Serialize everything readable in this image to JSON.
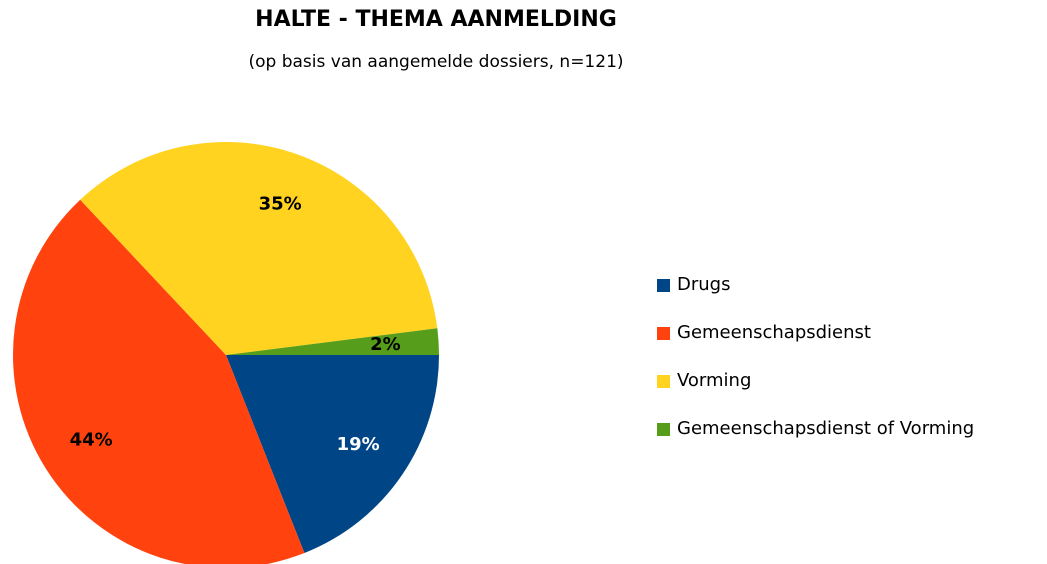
{
  "chart_data": {
    "type": "pie",
    "title": "HALTE - THEMA AANMELDING",
    "subtitle": "(op basis van aangemelde dossiers, n=121)",
    "categories": [
      "Drugs",
      "Gemeenschapsdienst",
      "Vorming",
      "Gemeenschapsdienst of Vorming"
    ],
    "values": [
      19,
      44,
      35,
      2
    ],
    "value_labels": [
      "19%",
      "44%",
      "35%",
      "2%"
    ],
    "colors": [
      "#004586",
      "#ff420e",
      "#ffd320",
      "#579d1c"
    ],
    "legend": "right"
  }
}
